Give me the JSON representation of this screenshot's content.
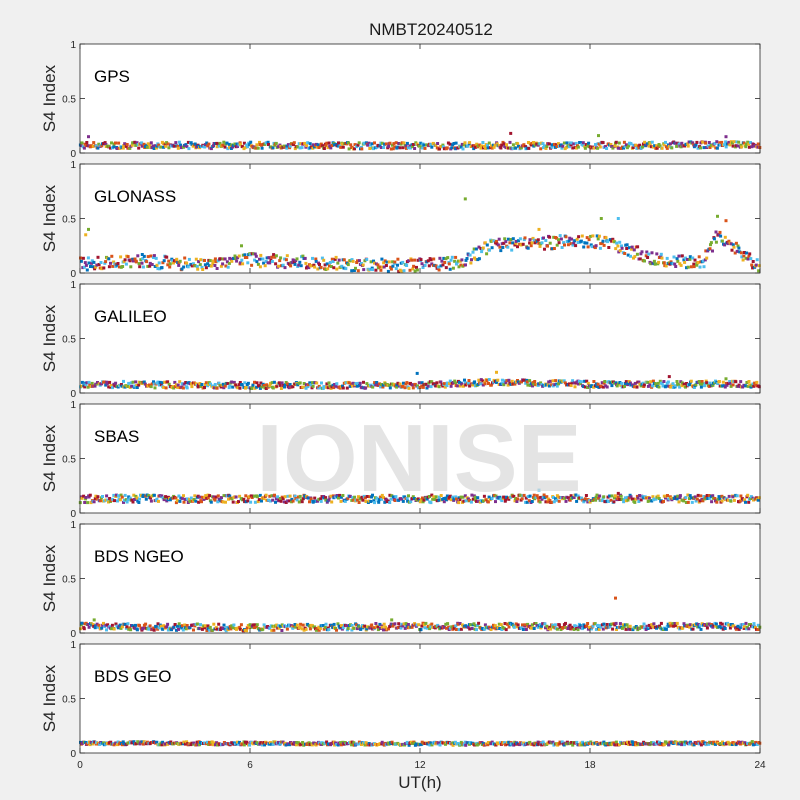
{
  "figure": {
    "title": "NMBT20240512",
    "xlabel": "UT(h)",
    "watermark": "IONISE",
    "background": "#f0f0f0"
  },
  "chart_data": {
    "type": "scatter",
    "title": "NMBT20240512",
    "xlabel": "UT(h)",
    "xlim": [
      0,
      24
    ],
    "xticks": [
      0,
      6,
      12,
      18,
      24
    ],
    "ylim": [
      0,
      1
    ],
    "yticks": [
      0,
      0.5,
      1
    ],
    "grid": false,
    "series_colors": [
      "#0072BD",
      "#D95319",
      "#EDB120",
      "#7E2F8E",
      "#77AC30",
      "#4DBEEE",
      "#A2142F"
    ],
    "panels": [
      {
        "label": "GPS",
        "ylabel": "S4 Index",
        "baseline": [
          [
            0,
            0.07
          ],
          [
            6,
            0.07
          ],
          [
            12,
            0.065
          ],
          [
            18,
            0.07
          ],
          [
            24,
            0.075
          ]
        ],
        "spread": 0.03,
        "outliers": [
          [
            0.3,
            0.15
          ],
          [
            15.2,
            0.18
          ],
          [
            18.3,
            0.16
          ],
          [
            22.8,
            0.15
          ]
        ]
      },
      {
        "label": "GLONASS",
        "ylabel": "S4 Index",
        "baseline": [
          [
            0,
            0.08
          ],
          [
            2,
            0.11
          ],
          [
            4,
            0.08
          ],
          [
            6,
            0.12
          ],
          [
            8,
            0.1
          ],
          [
            10,
            0.07
          ],
          [
            12,
            0.07
          ],
          [
            13.5,
            0.1
          ],
          [
            14.5,
            0.25
          ],
          [
            16,
            0.27
          ],
          [
            18,
            0.3
          ],
          [
            19,
            0.25
          ],
          [
            20,
            0.15
          ],
          [
            21,
            0.1
          ],
          [
            22,
            0.1
          ],
          [
            22.5,
            0.35
          ],
          [
            23.5,
            0.15
          ],
          [
            24,
            0.05
          ]
        ],
        "spread": 0.06,
        "outliers": [
          [
            0.2,
            0.35
          ],
          [
            0.3,
            0.4
          ],
          [
            13.6,
            0.68
          ],
          [
            16.2,
            0.4
          ],
          [
            18.4,
            0.5
          ],
          [
            19,
            0.5
          ],
          [
            22.5,
            0.52
          ],
          [
            22.8,
            0.48
          ],
          [
            2.2,
            0.17
          ],
          [
            5.7,
            0.25
          ]
        ]
      },
      {
        "label": "GALILEO",
        "ylabel": "S4 Index",
        "baseline": [
          [
            0,
            0.08
          ],
          [
            6,
            0.07
          ],
          [
            12,
            0.07
          ],
          [
            14.5,
            0.1
          ],
          [
            18,
            0.08
          ],
          [
            24,
            0.08
          ]
        ],
        "spread": 0.03,
        "outliers": [
          [
            11.9,
            0.18
          ],
          [
            14.7,
            0.19
          ],
          [
            20.8,
            0.15
          ],
          [
            22.8,
            0.13
          ]
        ]
      },
      {
        "label": "SBAS",
        "ylabel": "S4 Index",
        "baseline": [
          [
            0,
            0.13
          ],
          [
            12,
            0.13
          ],
          [
            24,
            0.13
          ]
        ],
        "spread": 0.035,
        "outliers": [
          [
            16.2,
            0.21
          ],
          [
            19,
            0.18
          ]
        ]
      },
      {
        "label": "BDS NGEO",
        "ylabel": "S4 Index",
        "baseline": [
          [
            0,
            0.06
          ],
          [
            6,
            0.05
          ],
          [
            12,
            0.06
          ],
          [
            18,
            0.06
          ],
          [
            24,
            0.06
          ]
        ],
        "spread": 0.03,
        "outliers": [
          [
            18.9,
            0.32
          ],
          [
            11,
            0.12
          ],
          [
            0.5,
            0.12
          ]
        ]
      },
      {
        "label": "BDS GEO",
        "ylabel": "S4 Index",
        "baseline": [
          [
            0,
            0.09
          ],
          [
            12,
            0.085
          ],
          [
            24,
            0.09
          ]
        ],
        "spread": 0.015,
        "outliers": []
      }
    ]
  }
}
